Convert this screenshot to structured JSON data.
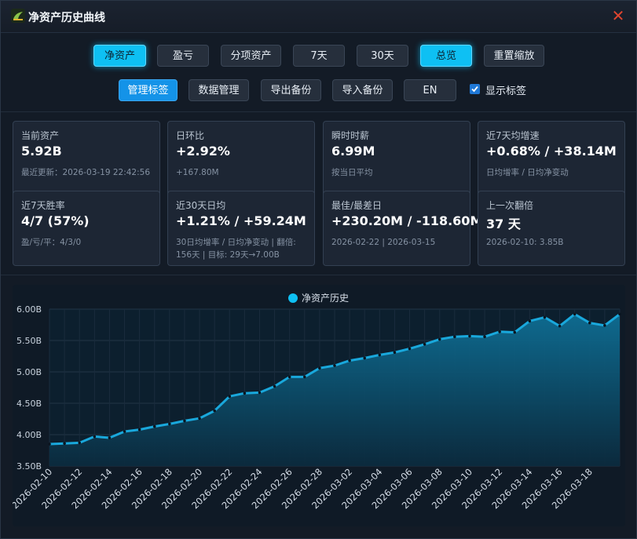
{
  "window": {
    "title": "净资产历史曲线"
  },
  "toolbar_row1": [
    {
      "label": "净资产",
      "active": true
    },
    {
      "label": "盈亏",
      "active": false
    },
    {
      "label": "分项资产",
      "active": false
    },
    {
      "label": "7天",
      "active": false
    },
    {
      "label": "30天",
      "active": false
    },
    {
      "label": "总览",
      "active": true
    },
    {
      "label": "重置缩放",
      "active": false
    }
  ],
  "toolbar_row2": [
    {
      "label": "管理标签",
      "active": true
    },
    {
      "label": "数据管理",
      "active": false
    },
    {
      "label": "导出备份",
      "active": false
    },
    {
      "label": "导入备份",
      "active": false
    },
    {
      "label": "EN",
      "active": false
    }
  ],
  "show_labels": {
    "label": "显示标签",
    "checked": true
  },
  "cards": [
    {
      "label": "当前资产",
      "value": "5.92B",
      "sub": "最近更新：2026-03-19 22:42:56"
    },
    {
      "label": "日环比",
      "value": "+2.92%",
      "sub": "+167.80M"
    },
    {
      "label": "瞬时时薪",
      "value": "6.99M",
      "sub": "按当日平均"
    },
    {
      "label": "近7天均增速",
      "value": "+0.68% / +38.14M",
      "sub": "日均增率 / 日均净变动"
    },
    {
      "label": "近7天胜率",
      "value": "4/7 (57%)",
      "sub": "盈/亏/平：4/3/0"
    },
    {
      "label": "近30天日均",
      "value": "+1.21% / +59.24M",
      "sub": "30日均增率 / 日均净变动 | 翻倍: 156天 | 目标: 29天→7.00B"
    },
    {
      "label": "最佳/最差日",
      "value": "+230.20M / -118.60M",
      "sub": "2026-02-22 | 2026-03-15"
    },
    {
      "label": "上一次翻倍",
      "value": "37 天",
      "sub": "2026-02-10: 3.85B"
    }
  ],
  "colors": {
    "accent": "#0ec0f3",
    "line": "#19a8dc",
    "area_top": "#0e6e94"
  },
  "chart_data": {
    "type": "area",
    "legend": "净资产历史",
    "legend_position": "top",
    "y_unit_suffix": "B",
    "ylim": [
      3.5,
      6.0
    ],
    "y_ticks": [
      3.5,
      4.0,
      4.5,
      5.0,
      5.5,
      6.0
    ],
    "y_tick_labels": [
      "3.50B",
      "4.00B",
      "4.50B",
      "5.00B",
      "5.50B",
      "6.00B"
    ],
    "x_tick_labels": [
      "2026-02-10",
      "2026-02-12",
      "2026-02-14",
      "2026-02-16",
      "2026-02-18",
      "2026-02-20",
      "2026-02-22",
      "2026-02-24",
      "2026-02-26",
      "2026-02-28",
      "2026-03-02",
      "2026-03-04",
      "2026-03-06",
      "2026-03-08",
      "2026-03-10",
      "2026-03-12",
      "2026-03-14",
      "2026-03-16",
      "2026-03-18"
    ],
    "grid": true,
    "series": [
      {
        "values": [
          3.85,
          3.86,
          3.87,
          3.97,
          3.95,
          4.05,
          4.08,
          4.13,
          4.17,
          4.22,
          4.26,
          4.38,
          4.61,
          4.66,
          4.67,
          4.77,
          4.92,
          4.92,
          5.06,
          5.1,
          5.18,
          5.22,
          5.27,
          5.31,
          5.37,
          5.44,
          5.52,
          5.56,
          5.57,
          5.56,
          5.64,
          5.63,
          5.81,
          5.87,
          5.73,
          5.92,
          5.78,
          5.74,
          5.92
        ]
      }
    ]
  }
}
